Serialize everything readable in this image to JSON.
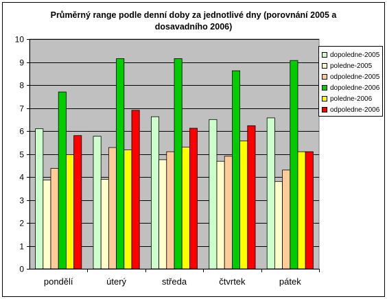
{
  "chart_data": {
    "type": "bar",
    "title_lines": [
      "Průměrný range podle denní doby za jednotlivé dny (porovnání 2005 a",
      "dosavadního 2006)"
    ],
    "categories": [
      "pondělí",
      "úterý",
      "středa",
      "čtvrtek",
      "pátek"
    ],
    "ylim": [
      0,
      10
    ],
    "yticks": [
      "0",
      "1",
      "2",
      "3",
      "4",
      "5",
      "6",
      "7",
      "8",
      "9",
      "10"
    ],
    "grid": true,
    "legend_position": "right",
    "series": [
      {
        "name": "dopoledne-2005",
        "color": "#ccffcc",
        "values": [
          6.1,
          5.77,
          6.62,
          6.5,
          6.57
        ]
      },
      {
        "name": "poledne-2005",
        "color": "#ffffcc",
        "values": [
          3.87,
          3.9,
          4.75,
          4.68,
          3.8
        ]
      },
      {
        "name": "odpoledne-2005",
        "color": "#ffcc99",
        "values": [
          4.37,
          5.28,
          5.1,
          4.9,
          4.3
        ]
      },
      {
        "name": "dopoledne-2006",
        "color": "#00cc00",
        "values": [
          7.7,
          9.15,
          9.15,
          8.62,
          9.07
        ]
      },
      {
        "name": "poledne-2006",
        "color": "#ffff00",
        "values": [
          4.97,
          5.18,
          5.3,
          5.57,
          5.1
        ]
      },
      {
        "name": "odpoledne-2006",
        "color": "#ff0000",
        "values": [
          5.8,
          6.9,
          6.12,
          6.23,
          5.1
        ]
      }
    ],
    "plot_background": "#c0c0c0"
  }
}
